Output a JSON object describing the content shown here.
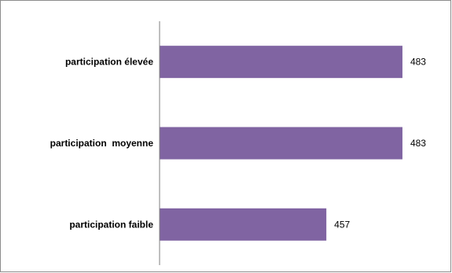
{
  "chart_data": {
    "type": "bar",
    "orientation": "horizontal",
    "categories": [
      "participation élevée",
      "participation  moyenne",
      "participation faible"
    ],
    "values": [
      483,
      483,
      457
    ],
    "xlim": [
      400,
      490
    ],
    "bar_color": "#8064a2",
    "axis_color": "#7f7f7f",
    "grid": false,
    "legend": "none"
  }
}
